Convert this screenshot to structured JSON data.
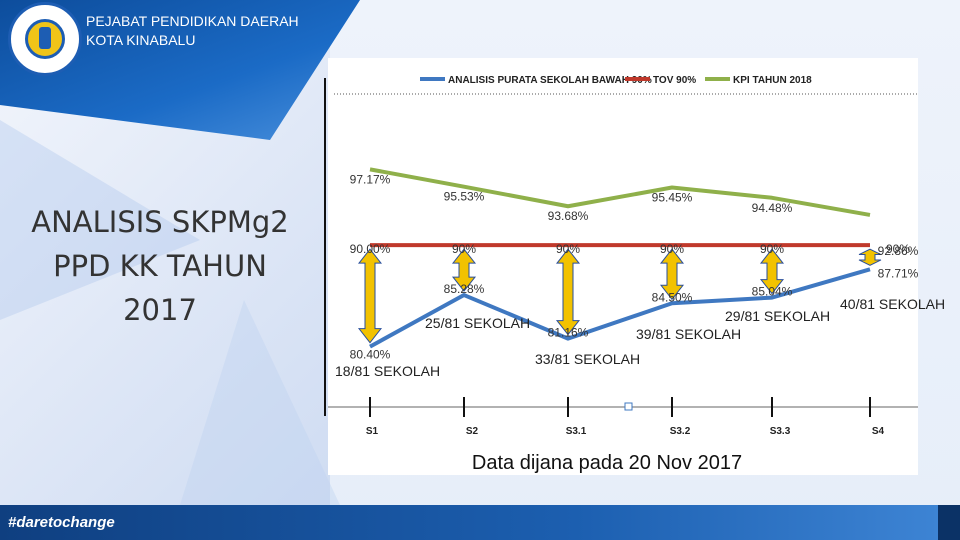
{
  "header": {
    "org_line1": "PEJABAT PENDIDIKAN DAERAH",
    "org_line2": "KOTA KINABALU"
  },
  "slide": {
    "title_line1": "ANALISIS SKPMg2",
    "title_line2": "PPD KK TAHUN",
    "title_line3": "2017"
  },
  "footer": {
    "hashtag": "#daretochange"
  },
  "chart_data": {
    "type": "line",
    "categories": [
      "S1",
      "S2",
      "S3.1",
      "S3.2",
      "S3.3",
      "S4"
    ],
    "series": [
      {
        "name": "ANALISIS PURATA SEKOLAH BAWAH 90%",
        "color": "#3f78c1",
        "values": [
          80.4,
          85.28,
          81.16,
          84.5,
          85.04,
          87.71
        ],
        "labels": [
          "80.40%",
          "85.28%",
          "81.16%",
          "84.50%",
          "85.04%",
          "87.71%"
        ]
      },
      {
        "name": "TOV 90%",
        "color": "#c0392b",
        "values": [
          90.0,
          90,
          90,
          90,
          90,
          90
        ],
        "labels": [
          "90.00%",
          "90%",
          "90%",
          "90%",
          "90%",
          "90%"
        ]
      },
      {
        "name": "KPI TAHUN 2018",
        "color": "#8fb04a",
        "values": [
          97.17,
          95.53,
          93.68,
          95.45,
          94.48,
          92.86
        ],
        "labels": [
          "97.17%",
          "95.53%",
          "93.68%",
          "95.45%",
          "94.48%",
          "92.86%"
        ]
      }
    ],
    "ylim": [
      78,
      99
    ],
    "gap_arrow_color": "#f2c200",
    "annotations": [
      "18/81 SEKOLAH",
      "25/81 SEKOLAH",
      "33/81 SEKOLAH",
      "39/81 SEKOLAH",
      "29/81 SEKOLAH",
      "40/81 SEKOLAH"
    ],
    "note": "Data dijana pada 20 Nov 2017",
    "legend_position": "top"
  }
}
